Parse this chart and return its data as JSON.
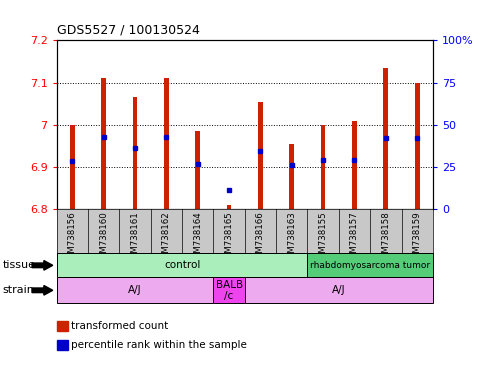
{
  "title": "GDS5527 / 100130524",
  "samples": [
    "GSM738156",
    "GSM738160",
    "GSM738161",
    "GSM738162",
    "GSM738164",
    "GSM738165",
    "GSM738166",
    "GSM738163",
    "GSM738155",
    "GSM738157",
    "GSM738158",
    "GSM738159"
  ],
  "bar_tops": [
    7.0,
    7.11,
    7.065,
    7.11,
    6.985,
    6.81,
    7.055,
    6.955,
    7.0,
    7.01,
    7.135,
    7.1
  ],
  "bar_bottom": 6.8,
  "percentile_values": [
    6.915,
    6.97,
    6.945,
    6.97,
    6.908,
    6.845,
    6.938,
    6.905,
    6.916,
    6.916,
    6.968,
    6.968
  ],
  "ylim_left": [
    6.8,
    7.2
  ],
  "ylim_right": [
    0,
    100
  ],
  "yticks_left": [
    6.8,
    6.9,
    7.0,
    7.1,
    7.2
  ],
  "yticks_right": [
    0,
    25,
    50,
    75,
    100
  ],
  "ytick_labels_left": [
    "6.8",
    "6.9",
    "7",
    "7.1",
    "7.2"
  ],
  "ytick_labels_right": [
    "0",
    "25",
    "50",
    "75",
    "100%"
  ],
  "bar_color": "#cc2200",
  "dot_color": "#0000cc",
  "plot_bg_color": "#ffffff",
  "tick_label_area_bg": "#c8c8c8",
  "tissue_groups": [
    {
      "label": "control",
      "start": 0,
      "end": 7,
      "color": "#aaeebb"
    },
    {
      "label": "rhabdomyosarcoma tumor",
      "start": 8,
      "end": 11,
      "color": "#55cc77"
    }
  ],
  "strain_groups": [
    {
      "label": "A/J",
      "start": 0,
      "end": 4,
      "color": "#eeaaee"
    },
    {
      "label": "BALB\n/c",
      "start": 5,
      "end": 5,
      "color": "#ee44ee"
    },
    {
      "label": "A/J",
      "start": 6,
      "end": 11,
      "color": "#eeaaee"
    }
  ],
  "tissue_label": "tissue",
  "strain_label": "strain",
  "legend_items": [
    {
      "label": "transformed count",
      "color": "#cc2200"
    },
    {
      "label": "percentile rank within the sample",
      "color": "#0000cc"
    }
  ],
  "bar_width": 0.15
}
